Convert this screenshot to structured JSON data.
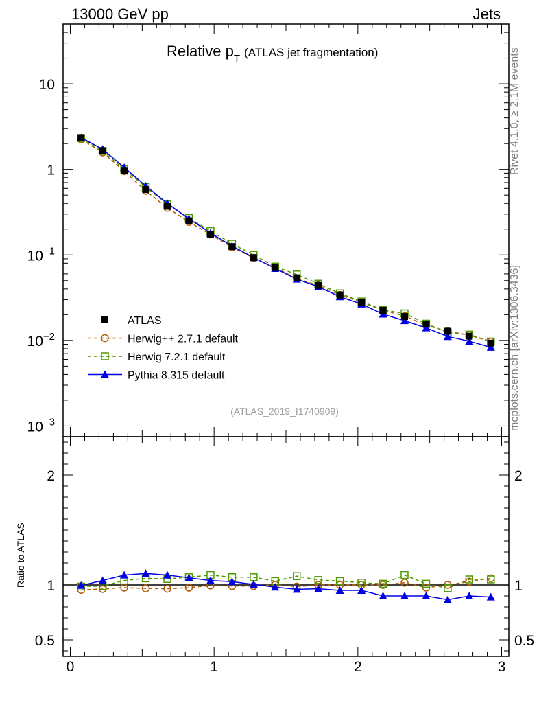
{
  "header": {
    "left": "13000 GeV pp",
    "right": "Jets"
  },
  "title": {
    "main": "Relative p",
    "sub": "T",
    "small": "(ATLAS jet fragmentation)"
  },
  "side_labels": {
    "rivet": "Rivet 4.1.0, ≥ 2.1M events",
    "mcplots": "mcplots.cern.ch [arXiv:1306.3436]"
  },
  "analysis_id": "(ATLAS_2019_I1740909)",
  "chart_data": {
    "type": "line",
    "x": [
      0.075,
      0.225,
      0.375,
      0.525,
      0.675,
      0.825,
      0.975,
      1.125,
      1.275,
      1.425,
      1.575,
      1.725,
      1.875,
      2.025,
      2.175,
      2.325,
      2.475,
      2.625,
      2.775,
      2.925
    ],
    "xlim": [
      -0.05,
      3.05
    ],
    "main": {
      "yscale": "log",
      "ylim": [
        0.00075,
        50
      ],
      "ytick_labels": [
        "10",
        "1",
        "10−1",
        "10−2",
        "10−3"
      ],
      "series": [
        {
          "name": "ATLAS",
          "style": "data",
          "color": "#000000",
          "values": [
            2.35,
            1.65,
            0.97,
            0.58,
            0.37,
            0.25,
            0.175,
            0.125,
            0.093,
            0.071,
            0.054,
            0.044,
            0.034,
            0.028,
            0.0225,
            0.019,
            0.0155,
            0.0128,
            0.0112,
            0.0093
          ]
        },
        {
          "name": "Herwig++ 2.7.1 default",
          "style": "circle-dashed",
          "color": "#b35900",
          "values": [
            2.24,
            1.58,
            0.95,
            0.56,
            0.355,
            0.243,
            0.173,
            0.123,
            0.092,
            0.071,
            0.053,
            0.044,
            0.034,
            0.028,
            0.0225,
            0.0193,
            0.015,
            0.0128,
            0.0115,
            0.0097
          ]
        },
        {
          "name": "Herwig 7.2.1 default",
          "style": "square-dashed",
          "color": "#4d9900",
          "values": [
            2.32,
            1.64,
            1.0,
            0.62,
            0.39,
            0.27,
            0.19,
            0.135,
            0.1,
            0.073,
            0.059,
            0.046,
            0.0355,
            0.0285,
            0.0227,
            0.0207,
            0.0157,
            0.0124,
            0.0117,
            0.0097
          ]
        },
        {
          "name": "Pythia 8.315 default",
          "style": "triangle-solid",
          "color": "#0000e6",
          "values": [
            2.35,
            1.72,
            1.05,
            0.64,
            0.4,
            0.265,
            0.18,
            0.127,
            0.093,
            0.0695,
            0.052,
            0.0425,
            0.0324,
            0.0266,
            0.0203,
            0.017,
            0.014,
            0.0111,
            0.0098,
            0.0083
          ]
        }
      ]
    },
    "ratio": {
      "ylabel": "Ratio to ATLAS",
      "ylim": [
        0.35,
        2.35
      ],
      "ytick_labels": [
        "0.5",
        "1",
        "2"
      ],
      "series": [
        {
          "name": "Herwig++ 2.7.1 default",
          "values": [
            0.955,
            0.963,
            0.975,
            0.968,
            0.965,
            0.975,
            0.995,
            0.99,
            0.99,
            1.0,
            0.985,
            1.0,
            1.0,
            1.0,
            1.0,
            1.02,
            0.975,
            1.0,
            1.03,
            1.06
          ]
        },
        {
          "name": "Herwig 7.2.1 default",
          "values": [
            0.985,
            0.99,
            1.04,
            1.06,
            1.055,
            1.07,
            1.09,
            1.07,
            1.07,
            1.035,
            1.08,
            1.045,
            1.035,
            1.02,
            1.01,
            1.09,
            1.01,
            0.97,
            1.05,
            1.05
          ]
        },
        {
          "name": "Pythia 8.315 default",
          "values": [
            0.995,
            1.04,
            1.09,
            1.105,
            1.09,
            1.065,
            1.04,
            1.03,
            1.005,
            0.98,
            0.96,
            0.965,
            0.95,
            0.95,
            0.9,
            0.9,
            0.9,
            0.865,
            0.9,
            0.89
          ]
        }
      ]
    }
  }
}
